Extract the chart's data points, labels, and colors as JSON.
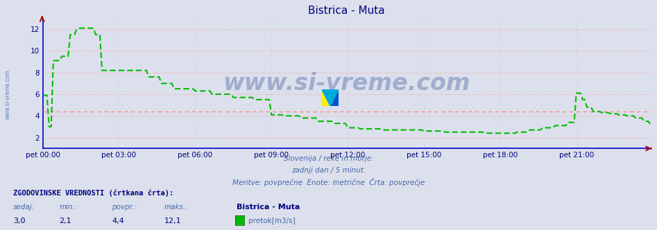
{
  "title": "Bistrica - Muta",
  "title_color": "#000080",
  "bg_color": "#dce0ec",
  "plot_bg_color": "#dce0ec",
  "line_color": "#00bb00",
  "avg_line_color": "#ff8888",
  "avg_line_value": 4.4,
  "xlabel_ticks": [
    "pet 00:00",
    "pet 03:00",
    "pet 06:00",
    "pet 09:00",
    "pet 12:00",
    "pet 15:00",
    "pet 18:00",
    "pet 21:00"
  ],
  "ylabel_ticks": [
    2,
    4,
    6,
    8,
    10,
    12
  ],
  "ylim": [
    1.0,
    13.0
  ],
  "xlim": [
    0,
    287
  ],
  "grid_h_color": "#ff9999",
  "grid_v_color": "#ccccdd",
  "watermark_text": "www.si-vreme.com",
  "watermark_color": "#1a3a8a",
  "watermark_alpha": 0.3,
  "footer_line1": "Slovenija / reke in morje.",
  "footer_line2": "zadnji dan / 5 minut.",
  "footer_line3": "Meritve: povprečne  Enote: metrične  Črta: povprečje",
  "footer_color": "#4466aa",
  "stats_label": "ZGODOVINSKE VREDNOSTI (črtkana črta):",
  "stats_sedaj": "3,0",
  "stats_min": "2,1",
  "stats_povpr": "4,4",
  "stats_maks": "12,1",
  "legend_label": "Bistrica - Muta",
  "legend_unit": "pretok[m3/s]",
  "legend_color": "#00bb00",
  "left_label": "www.si-vreme.com",
  "left_label_color": "#4466aa",
  "n_points": 288,
  "tick_color": "#000080",
  "spine_color": "#0000cc",
  "arrow_color": "#aa0000",
  "xtick_pos": [
    0,
    36,
    72,
    108,
    144,
    180,
    216,
    252
  ]
}
